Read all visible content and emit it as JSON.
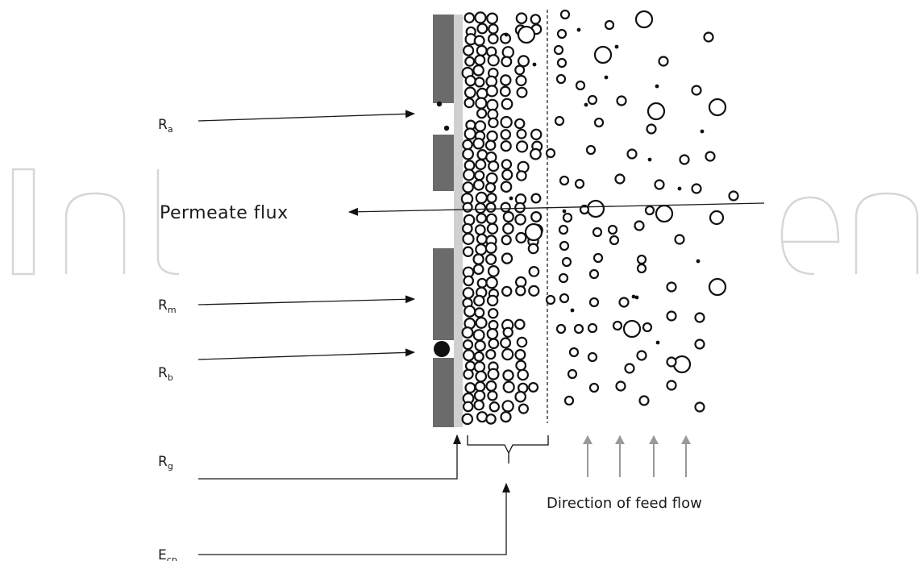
{
  "watermark": "IntechOpen",
  "labels": {
    "ra": {
      "main": "R",
      "sub": "a"
    },
    "rm": {
      "main": "R",
      "sub": "m"
    },
    "rb": {
      "main": "R",
      "sub": "b"
    },
    "rg": {
      "main": "R",
      "sub": "g"
    },
    "ecp": {
      "main": "E",
      "sub": "cp"
    }
  },
  "permeate_flux": "Permeate flux",
  "feed_flow": "Direction of feed flow",
  "colors": {
    "membrane_pore_wall": "#6b6b6b",
    "gel_layer": "#d0d0d0",
    "feed_arrow": "#999999",
    "ink": "#111111",
    "watermark": "#d6d6d6"
  }
}
